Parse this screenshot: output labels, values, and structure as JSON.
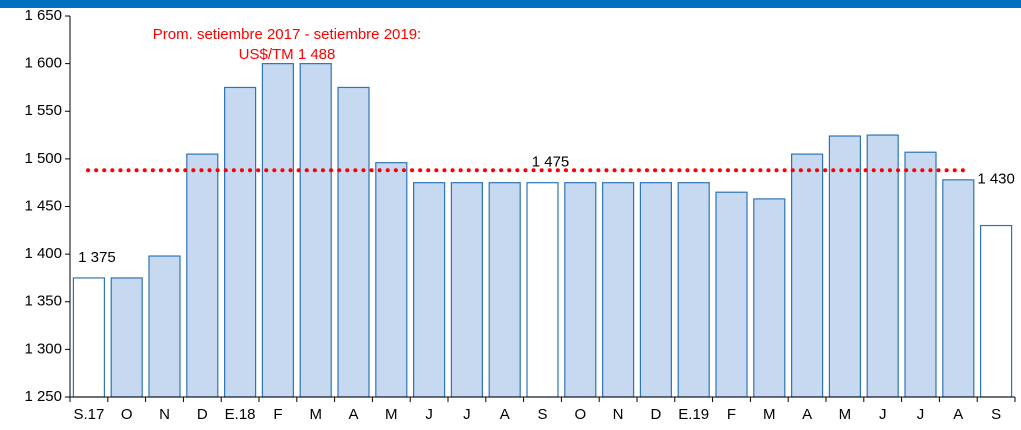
{
  "chart_data": {
    "type": "bar",
    "categories": [
      "S.17",
      "O",
      "N",
      "D",
      "E.18",
      "F",
      "M",
      "A",
      "M",
      "J",
      "J",
      "A",
      "S",
      "O",
      "N",
      "D",
      "E.19",
      "F",
      "M",
      "A",
      "M",
      "J",
      "J",
      "A",
      "S"
    ],
    "values": [
      1375,
      1375,
      1398,
      1505,
      1575,
      1600,
      1600,
      1575,
      1496,
      1475,
      1475,
      1475,
      1475,
      1475,
      1475,
      1475,
      1475,
      1465,
      1458,
      1505,
      1524,
      1525,
      1507,
      1478,
      1430
    ],
    "value_labels": [
      "1 375",
      null,
      null,
      null,
      null,
      null,
      null,
      null,
      null,
      null,
      null,
      null,
      "1 475",
      null,
      null,
      null,
      null,
      null,
      null,
      null,
      null,
      null,
      null,
      null,
      "1 430"
    ],
    "colors": [
      "#ffffff",
      "#c6d9f1",
      "#c6d9f1",
      "#c6d9f1",
      "#c6d9f1",
      "#c6d9f1",
      "#c6d9f1",
      "#c6d9f1",
      "#c6d9f1",
      "#c6d9f1",
      "#c6d9f1",
      "#c6d9f1",
      "#ffffff",
      "#c6d9f1",
      "#c6d9f1",
      "#c6d9f1",
      "#c6d9f1",
      "#c6d9f1",
      "#c6d9f1",
      "#c6d9f1",
      "#c6d9f1",
      "#c6d9f1",
      "#c6d9f1",
      "#c6d9f1",
      "#ffffff"
    ],
    "edge_color": "#2e75b6",
    "ylim": [
      1250,
      1650
    ],
    "yticks": [
      {
        "value": 1250,
        "label": "1 250"
      },
      {
        "value": 1300,
        "label": "1 300"
      },
      {
        "value": 1350,
        "label": "1 350"
      },
      {
        "value": 1400,
        "label": "1 400"
      },
      {
        "value": 1450,
        "label": "1 450"
      },
      {
        "value": 1500,
        "label": "1 500"
      },
      {
        "value": 1550,
        "label": "1 550"
      },
      {
        "value": 1600,
        "label": "1 600"
      },
      {
        "value": 1650,
        "label": "1 650"
      }
    ],
    "reference_line": {
      "value": 1488,
      "color": "#ff0000"
    },
    "annotation": [
      "Prom. setiembre 2017 - setiembre 2019:",
      "US$/TM 1 488"
    ]
  }
}
